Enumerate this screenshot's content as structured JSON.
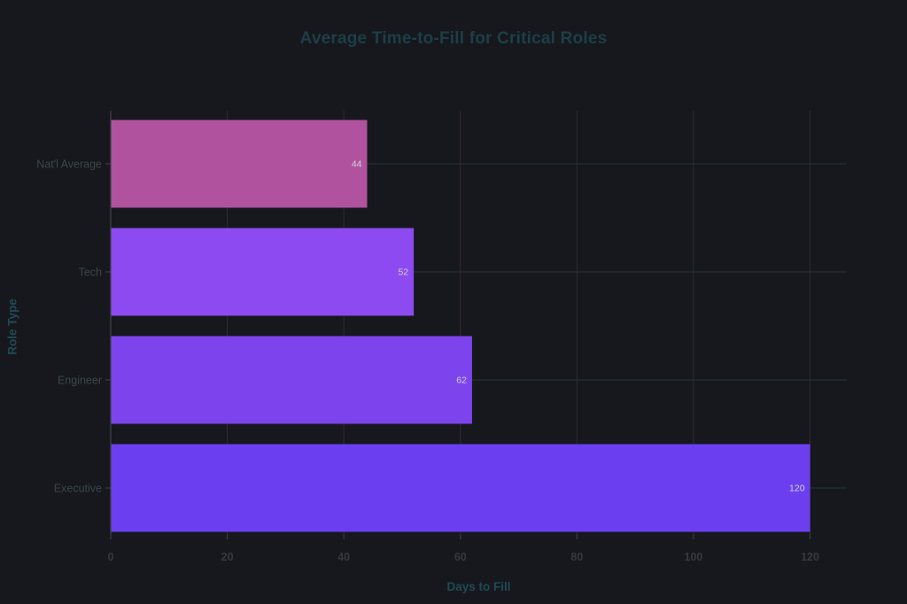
{
  "chart_data": {
    "type": "bar",
    "orientation": "horizontal",
    "title": "Average Time-to-Fill for Critical Roles",
    "xlabel": "Days to Fill",
    "ylabel": "Role Type",
    "categories": [
      "Nat'l Average",
      "Tech",
      "Engineer",
      "Executive"
    ],
    "values": [
      44,
      52,
      62,
      120
    ],
    "bar_colors": [
      "#b1529f",
      "#8c4af0",
      "#7d44ee",
      "#6b3ff0"
    ],
    "xticks": [
      0,
      20,
      40,
      60,
      80,
      100,
      120
    ],
    "xlim": [
      0,
      126.3
    ],
    "grid": true,
    "legend": "none",
    "colors": {
      "background": "#16181d",
      "title": "#1d3e46",
      "axis_label": "#204a55",
      "category_label": "#3c464c",
      "tick_label": "#36393f",
      "value_label": "#d4d5d8",
      "grid_x": "#332a33",
      "grid_y": "#253639",
      "spine": "#40444a"
    }
  }
}
